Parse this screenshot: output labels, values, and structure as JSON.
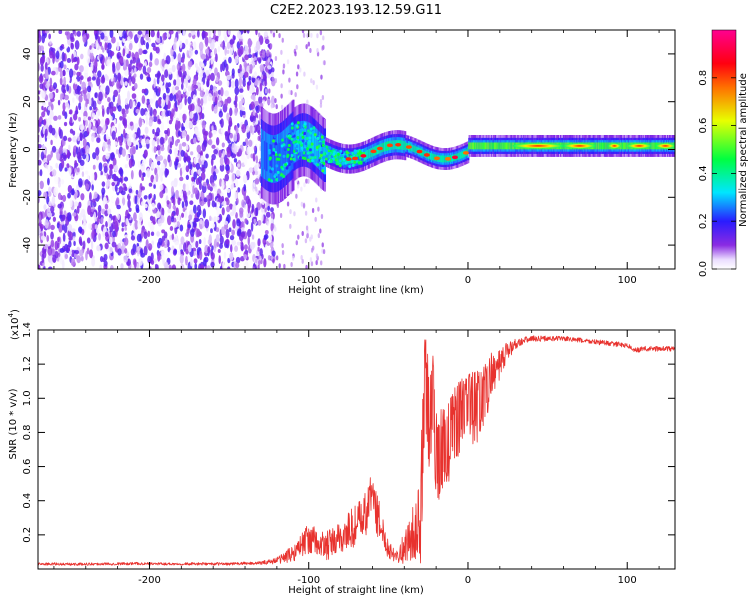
{
  "title": "C2E2.2023.193.12.59.G11",
  "colors": {
    "snr_line": "#e8322e",
    "spectrogram_background": "#ffffff",
    "axis": "#000000"
  },
  "chart_data": [
    {
      "type": "heatmap",
      "xlabel": "Height of straight line (km)",
      "ylabel": "Frequency (Hz)",
      "xlim": [
        -270,
        130
      ],
      "ylim": [
        -50,
        50
      ],
      "xticks": [
        -200,
        -100,
        0,
        100
      ],
      "xtick_labels": [
        "-200",
        "-100",
        "0",
        "100"
      ],
      "yticks": [
        -40,
        -20,
        0,
        20,
        40
      ],
      "ytick_labels": [
        "-40",
        "-20",
        "0",
        "20",
        "40"
      ],
      "grid": false,
      "colorbar": {
        "label": "Normalized spectral amplitude",
        "range": [
          0,
          1
        ],
        "ticks": [
          0.0,
          0.2,
          0.4,
          0.6,
          0.8
        ],
        "tick_labels": [
          "0.0",
          "0.2",
          "0.4",
          "0.6",
          "0.8"
        ],
        "colormap": "hsv-like (white, violet, blue, cyan, green, yellow, red, magenta)"
      },
      "regions": [
        {
          "x_range": [
            -270,
            -130
          ],
          "description": "noise",
          "amplitude_range": [
            0.0,
            0.15
          ]
        },
        {
          "x_range": [
            -130,
            -90
          ],
          "description": "signal onset, broad",
          "amplitude_range": [
            0.1,
            0.5
          ]
        },
        {
          "x_range": [
            -90,
            0
          ],
          "description": "signal near 0 Hz, narrowing",
          "amplitude_range": [
            0.3,
            0.9
          ]
        },
        {
          "x_range": [
            0,
            130
          ],
          "description": "strong narrow signal near 0 Hz",
          "amplitude_range": [
            0.5,
            1.0
          ]
        }
      ]
    },
    {
      "type": "line",
      "xlabel": "Height of straight line (km)",
      "ylabel": "SNR (10 * v/v)",
      "y_multiplier_label": "(x10",
      "y_multiplier_exponent": "4",
      "xlim": [
        -270,
        130
      ],
      "ylim": [
        0,
        14000
      ],
      "xticks": [
        -200,
        -100,
        0,
        100
      ],
      "xtick_labels": [
        "-200",
        "-100",
        "0",
        "100"
      ],
      "yticks": [
        2000,
        4000,
        6000,
        8000,
        10000,
        12000,
        14000
      ],
      "ytick_labels": [
        "0.2",
        "0.4",
        "0.6",
        "0.8",
        "1.0",
        "1.2",
        "1.4"
      ],
      "grid": false,
      "series": [
        {
          "x": [
            -270,
            -250,
            -230,
            -210,
            -190,
            -170,
            -150,
            -130,
            -120,
            -110,
            -105,
            -100,
            -95,
            -90,
            -85,
            -80,
            -75,
            -70,
            -65,
            -62,
            -60,
            -58,
            -55,
            -50,
            -45,
            -40,
            -35,
            -30,
            -27,
            -25,
            -22,
            -20,
            -15,
            -10,
            -5,
            0,
            5,
            10,
            15,
            20,
            25,
            30,
            35,
            40,
            50,
            60,
            70,
            80,
            90,
            100,
            105,
            110,
            120,
            130
          ],
          "y": [
            300,
            280,
            300,
            320,
            300,
            300,
            300,
            350,
            500,
            900,
            1400,
            1800,
            1500,
            1300,
            1500,
            1800,
            2200,
            2600,
            3000,
            3800,
            4800,
            3500,
            2600,
            1200,
            800,
            1200,
            2000,
            2800,
            10800,
            9000,
            10500,
            6500,
            6800,
            8000,
            9000,
            9500,
            9400,
            10000,
            11500,
            11800,
            12800,
            13200,
            13400,
            13500,
            13500,
            13500,
            13400,
            13300,
            13200,
            13100,
            12800,
            12900,
            12900,
            12900
          ],
          "noise_amplitude": [
            80,
            80,
            80,
            80,
            80,
            80,
            80,
            100,
            200,
            500,
            700,
            900,
            900,
            900,
            900,
            1000,
            1200,
            1300,
            1400,
            1500,
            1500,
            1300,
            1100,
            600,
            400,
            900,
            1500,
            2500,
            3000,
            3000,
            2800,
            2500,
            2200,
            2000,
            1800,
            1800,
            1800,
            1600,
            1200,
            1000,
            600,
            300,
            200,
            180,
            150,
            150,
            150,
            150,
            150,
            150,
            150,
            150,
            150,
            150
          ]
        }
      ]
    }
  ]
}
